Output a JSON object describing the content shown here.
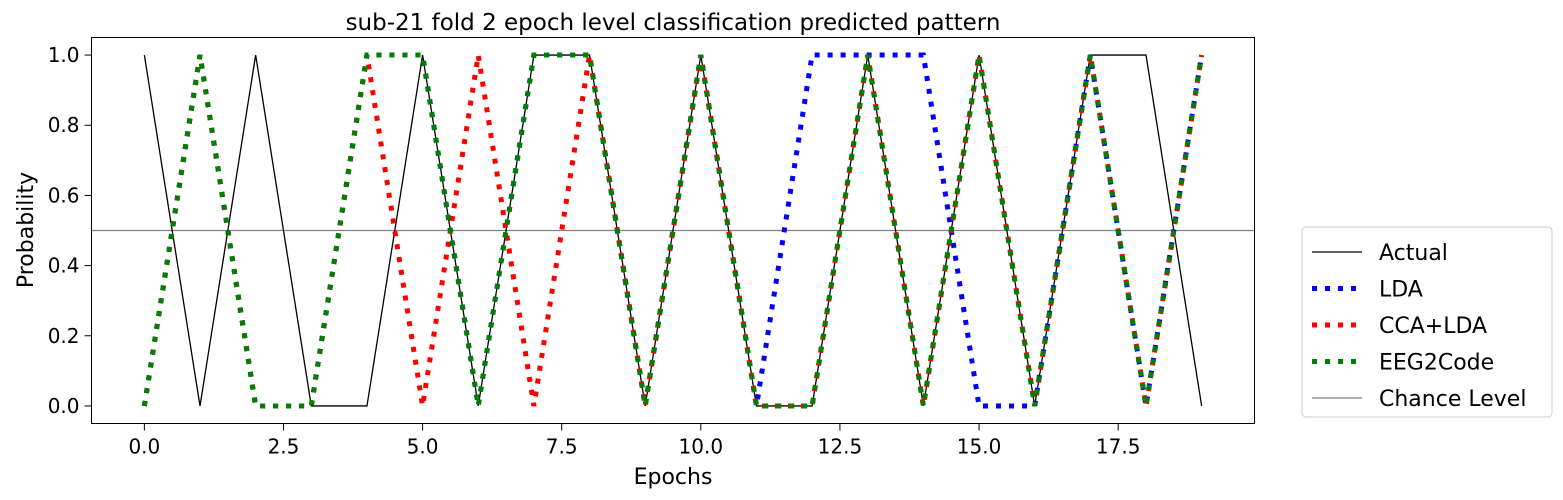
{
  "chart_data": {
    "type": "line",
    "title": "sub-21 fold 2 epoch level classification predicted pattern",
    "xlabel": "Epochs",
    "ylabel": "Probability",
    "xlim": [
      -0.95,
      19.95
    ],
    "ylim": [
      -0.05,
      1.05
    ],
    "xticks": [
      0,
      2.5,
      5,
      7.5,
      10,
      12.5,
      15,
      17.5
    ],
    "xtick_labels": [
      "0.0",
      "2.5",
      "5.0",
      "7.5",
      "10.0",
      "12.5",
      "15.0",
      "17.5"
    ],
    "yticks": [
      0,
      0.2,
      0.4,
      0.6,
      0.8,
      1.0
    ],
    "ytick_labels": [
      "0.0",
      "0.2",
      "0.4",
      "0.6",
      "0.8",
      "1.0"
    ],
    "grid": false,
    "legend_position": "outside-right",
    "x": [
      0,
      1,
      2,
      3,
      4,
      5,
      6,
      7,
      8,
      9,
      10,
      11,
      12,
      13,
      14,
      15,
      16,
      17,
      18,
      19
    ],
    "series": [
      {
        "name": "Actual",
        "color": "#000000",
        "style": "solid",
        "values": [
          1,
          0,
          1,
          0,
          0,
          1,
          0,
          1,
          1,
          0,
          1,
          0,
          0,
          1,
          0,
          1,
          0,
          1,
          1,
          0
        ]
      },
      {
        "name": "LDA",
        "color": "#0000ff",
        "style": "dotted",
        "values": [
          0,
          1,
          0,
          0,
          1,
          1,
          0,
          1,
          1,
          0,
          1,
          0,
          1,
          1,
          1,
          0,
          0,
          1,
          0,
          1
        ]
      },
      {
        "name": "CCA+LDA",
        "color": "#ff0000",
        "style": "dotted",
        "values": [
          0,
          1,
          0,
          0,
          1,
          0,
          1,
          0,
          1,
          0,
          1,
          0,
          0,
          1,
          0,
          1,
          0,
          1,
          0,
          1
        ]
      },
      {
        "name": "EEG2Code",
        "color": "#008000",
        "style": "dotted",
        "values": [
          0,
          1,
          0,
          0,
          1,
          1,
          0,
          1,
          1,
          0,
          1,
          0,
          0,
          1,
          0,
          1,
          0,
          1,
          0,
          1
        ]
      }
    ],
    "reference_lines": [
      {
        "name": "Chance Level",
        "y": 0.5,
        "color": "#808080"
      }
    ]
  }
}
